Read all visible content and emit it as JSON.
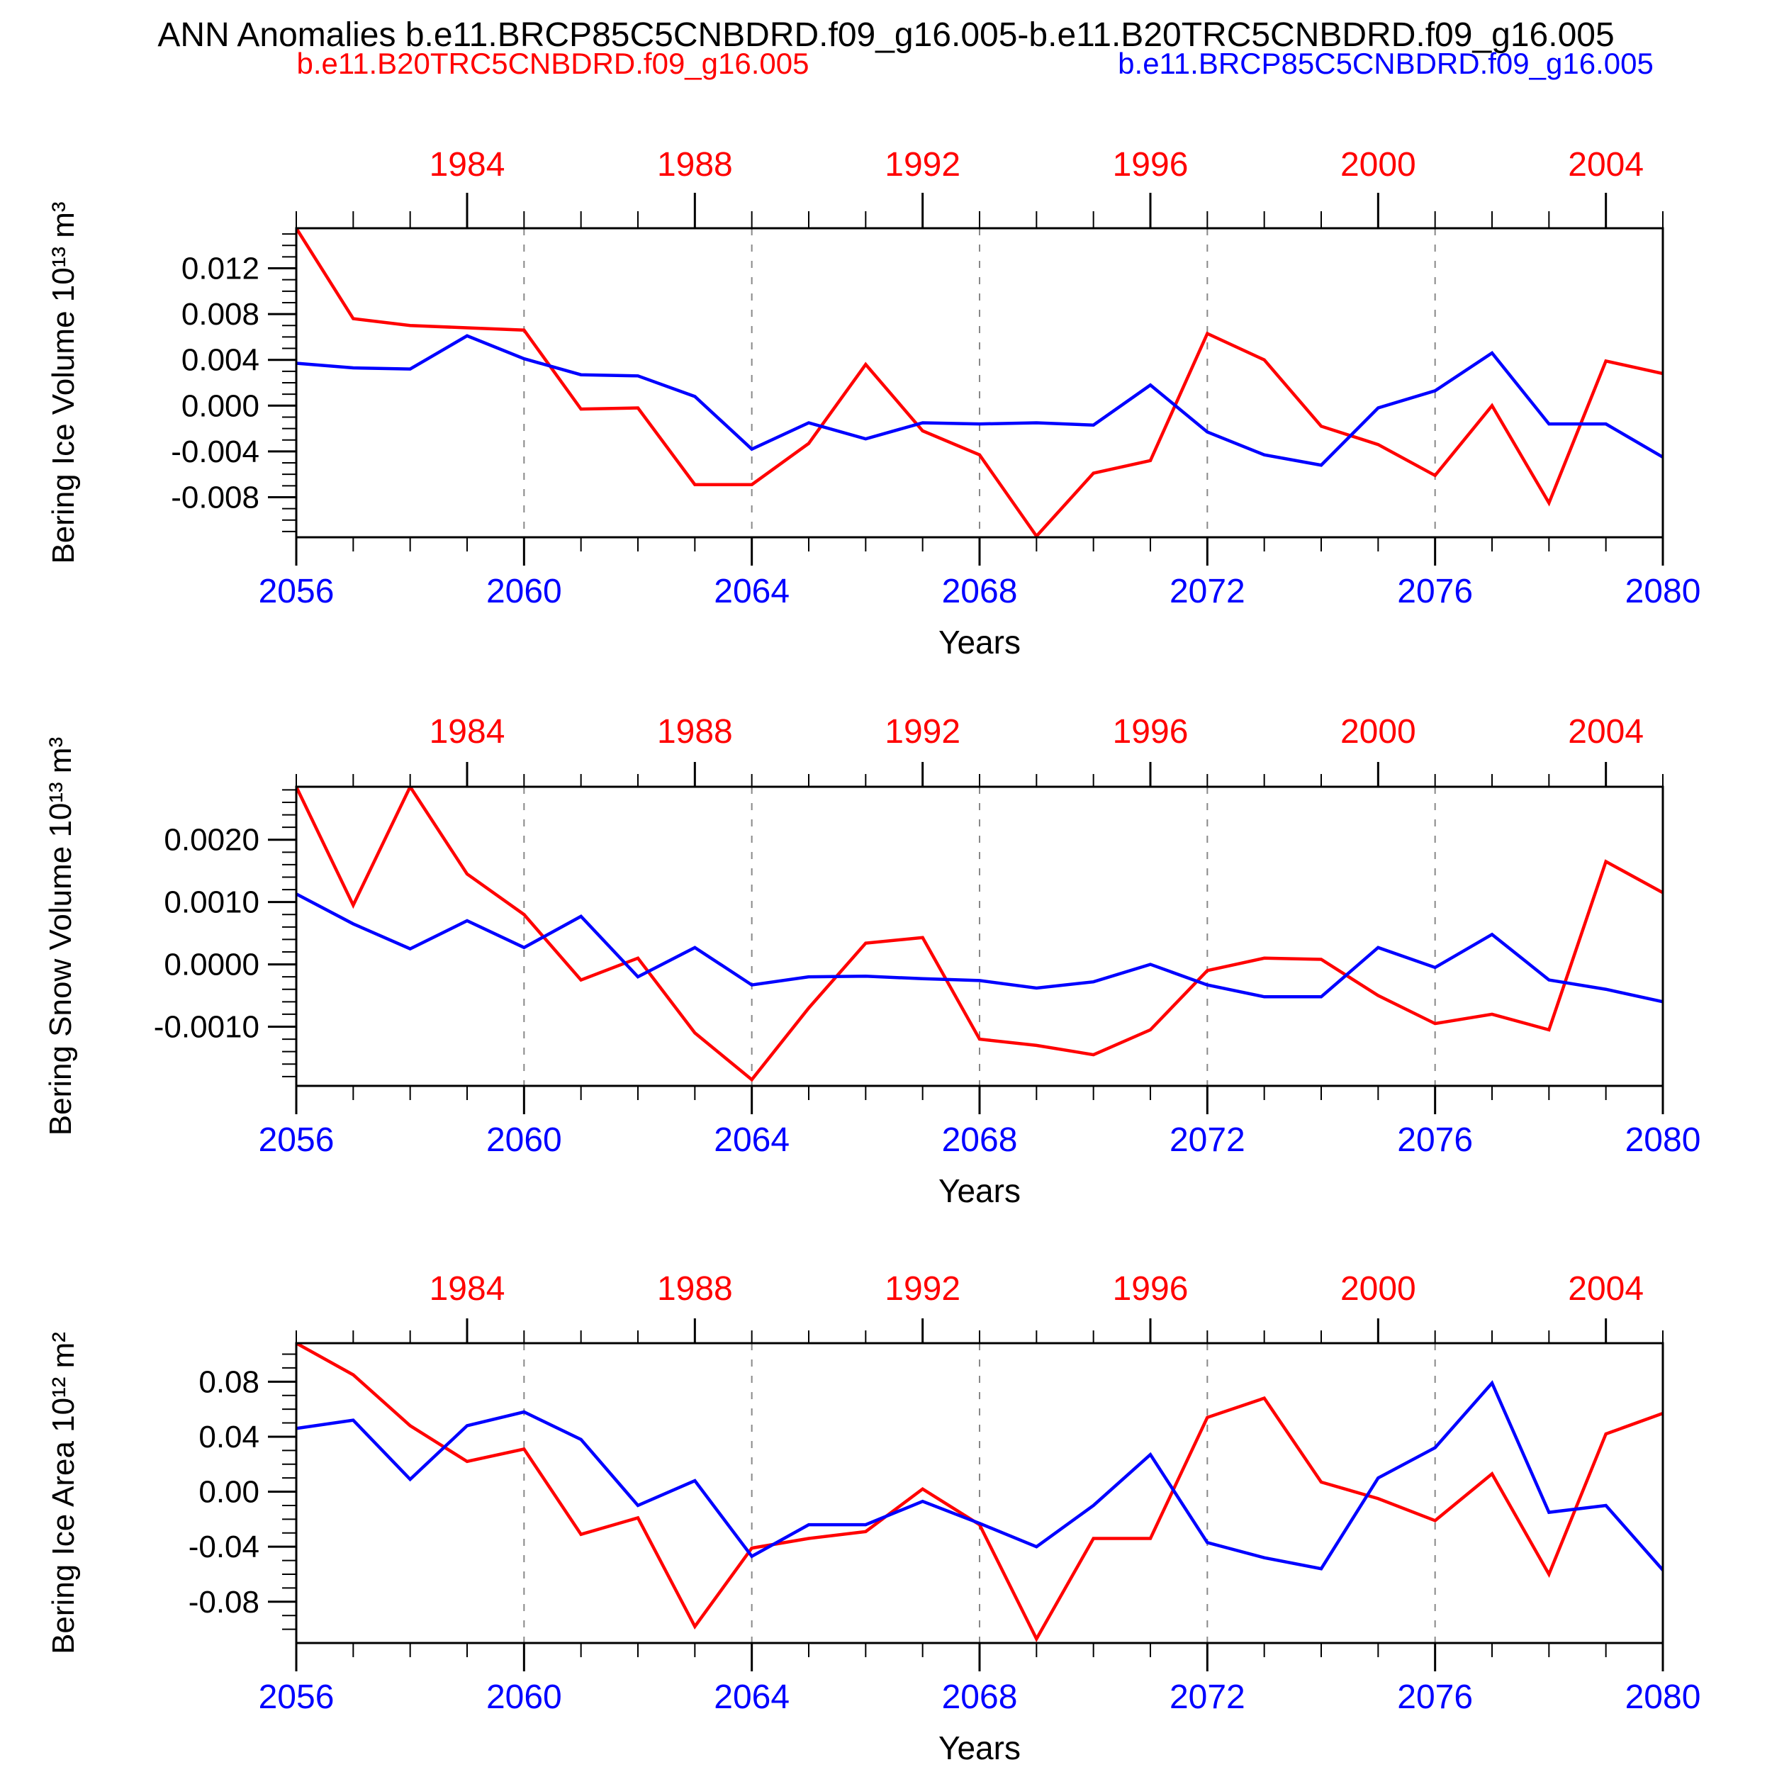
{
  "title": "ANN Anomalies b.e11.BRCP85C5CNBDRD.f09_g16.005-b.e11.B20TRC5CNBDRD.f09_g16.005",
  "legend": {
    "red_label": "b.e11.B20TRC5CNBDRD.f09_g16.005",
    "blue_label": "b.e11.BRCP85C5CNBDRD.f09_g16.005"
  },
  "colors": {
    "red": "#ff0000",
    "blue": "#0000ff",
    "axis": "#000000",
    "grid": "#888888"
  },
  "x_axis": {
    "label": "Years",
    "range": [
      2056,
      2080
    ],
    "bottom_tick_years": [
      2056,
      2060,
      2064,
      2068,
      2072,
      2076,
      2080
    ],
    "bottom_tick_labels": [
      "2056",
      "2060",
      "2064",
      "2068",
      "2072",
      "2076",
      "2080"
    ],
    "top_tick_years": [
      2059,
      2063,
      2067,
      2071,
      2075,
      2079
    ],
    "top_tick_labels": [
      "1984",
      "1988",
      "1992",
      "1996",
      "2000",
      "2004"
    ],
    "top_axis_years_range": [
      1981,
      2005
    ],
    "grid_years": [
      2060,
      2064,
      2068,
      2072,
      2076
    ]
  },
  "chart_data": [
    {
      "type": "line",
      "title": "",
      "xlabel": "Years",
      "ylabel": "Bering Ice Volume 10¹³ m³",
      "ylim": [
        -0.0115,
        0.0155
      ],
      "yminor": 0.001,
      "grid": "vertical-dashed",
      "yticks": [
        {
          "v": 0.012,
          "label": "0.012"
        },
        {
          "v": 0.008,
          "label": "0.008"
        },
        {
          "v": 0.004,
          "label": "0.004"
        },
        {
          "v": 0.0,
          "label": "0.000"
        },
        {
          "v": -0.004,
          "label": "-0.004"
        },
        {
          "v": -0.008,
          "label": "-0.008"
        }
      ],
      "years": [
        2056,
        2057,
        2058,
        2059,
        2060,
        2061,
        2062,
        2063,
        2064,
        2065,
        2066,
        2067,
        2068,
        2069,
        2070,
        2071,
        2072,
        2073,
        2074,
        2075,
        2076,
        2077,
        2078,
        2079,
        2080
      ],
      "series": [
        {
          "name": "b.e11.B20TRC5CNBDRD.f09_g16.005",
          "color": "red",
          "values": [
            0.0155,
            0.0076,
            0.007,
            0.0068,
            0.0066,
            -0.0003,
            -0.0002,
            -0.0069,
            -0.0069,
            -0.0033,
            0.0036,
            -0.0022,
            -0.0043,
            -0.0114,
            -0.0059,
            -0.0048,
            0.0063,
            0.004,
            -0.0018,
            -0.0034,
            -0.0061,
            0.0,
            -0.0085,
            0.0039,
            0.0028
          ]
        },
        {
          "name": "b.e11.BRCP85C5CNBDRD.f09_g16.005",
          "color": "blue",
          "values": [
            0.0037,
            0.0033,
            0.0032,
            0.0061,
            0.0041,
            0.0027,
            0.0026,
            0.0008,
            -0.0038,
            -0.0015,
            -0.0029,
            -0.0015,
            -0.0016,
            -0.0015,
            -0.0017,
            0.0018,
            -0.0023,
            -0.0043,
            -0.0052,
            -0.0002,
            0.0013,
            0.0046,
            -0.0016,
            -0.0016,
            -0.0045
          ]
        }
      ]
    },
    {
      "type": "line",
      "title": "",
      "xlabel": "Years",
      "ylabel": "Bering Snow Volume 10¹³ m³",
      "ylim": [
        -0.00195,
        0.00285
      ],
      "yminor": 0.0002,
      "grid": "vertical-dashed",
      "yticks": [
        {
          "v": 0.002,
          "label": "0.0020"
        },
        {
          "v": 0.001,
          "label": "0.0010"
        },
        {
          "v": 0.0,
          "label": "0.0000"
        },
        {
          "v": -0.001,
          "label": "-0.0010"
        }
      ],
      "years": [
        2056,
        2057,
        2058,
        2059,
        2060,
        2061,
        2062,
        2063,
        2064,
        2065,
        2066,
        2067,
        2068,
        2069,
        2070,
        2071,
        2072,
        2073,
        2074,
        2075,
        2076,
        2077,
        2078,
        2079,
        2080
      ],
      "series": [
        {
          "name": "b.e11.B20TRC5CNBDRD.f09_g16.005",
          "color": "red",
          "values": [
            0.00285,
            0.00095,
            0.00285,
            0.00145,
            0.0008,
            -0.00025,
            0.0001,
            -0.0011,
            -0.00185,
            -0.0007,
            0.00034,
            0.00043,
            -0.0012,
            -0.0013,
            -0.00145,
            -0.00105,
            -0.0001,
            0.0001,
            8e-05,
            -0.0005,
            -0.00095,
            -0.0008,
            -0.00105,
            0.00165,
            0.00115
          ]
        },
        {
          "name": "b.e11.BRCP85C5CNBDRD.f09_g16.005",
          "color": "blue",
          "values": [
            0.00113,
            0.00065,
            0.00025,
            0.0007,
            0.00027,
            0.00077,
            -0.0002,
            0.00027,
            -0.00033,
            -0.0002,
            -0.00019,
            -0.00023,
            -0.00026,
            -0.00038,
            -0.00028,
            0.0,
            -0.00033,
            -0.00052,
            -0.00052,
            0.00027,
            -5e-05,
            0.00048,
            -0.00025,
            -0.0004,
            -0.0006
          ]
        }
      ]
    },
    {
      "type": "line",
      "title": "",
      "xlabel": "Years",
      "ylabel": "Bering Ice Area 10¹² m²",
      "ylim": [
        -0.11,
        0.108
      ],
      "yminor": 0.01,
      "grid": "vertical-dashed",
      "yticks": [
        {
          "v": 0.08,
          "label": "0.08"
        },
        {
          "v": 0.04,
          "label": "0.04"
        },
        {
          "v": 0.0,
          "label": "0.00"
        },
        {
          "v": -0.04,
          "label": "-0.04"
        },
        {
          "v": -0.08,
          "label": "-0.08"
        }
      ],
      "years": [
        2056,
        2057,
        2058,
        2059,
        2060,
        2061,
        2062,
        2063,
        2064,
        2065,
        2066,
        2067,
        2068,
        2069,
        2070,
        2071,
        2072,
        2073,
        2074,
        2075,
        2076,
        2077,
        2078,
        2079,
        2080
      ],
      "series": [
        {
          "name": "b.e11.B20TRC5CNBDRD.f09_g16.005",
          "color": "red",
          "values": [
            0.108,
            0.085,
            0.048,
            0.022,
            0.031,
            -0.031,
            -0.019,
            -0.098,
            -0.041,
            -0.034,
            -0.029,
            0.002,
            -0.024,
            -0.107,
            -0.034,
            -0.034,
            0.054,
            0.068,
            0.007,
            -0.005,
            -0.021,
            0.013,
            -0.06,
            0.042,
            0.057
          ]
        },
        {
          "name": "b.e11.BRCP85C5CNBDRD.f09_g16.005",
          "color": "blue",
          "values": [
            0.046,
            0.052,
            0.009,
            0.048,
            0.058,
            0.038,
            -0.01,
            0.008,
            -0.047,
            -0.024,
            -0.024,
            -0.007,
            -0.023,
            -0.04,
            -0.01,
            0.027,
            -0.037,
            -0.048,
            -0.056,
            0.01,
            0.032,
            0.079,
            -0.015,
            -0.01,
            -0.057
          ]
        }
      ]
    }
  ]
}
